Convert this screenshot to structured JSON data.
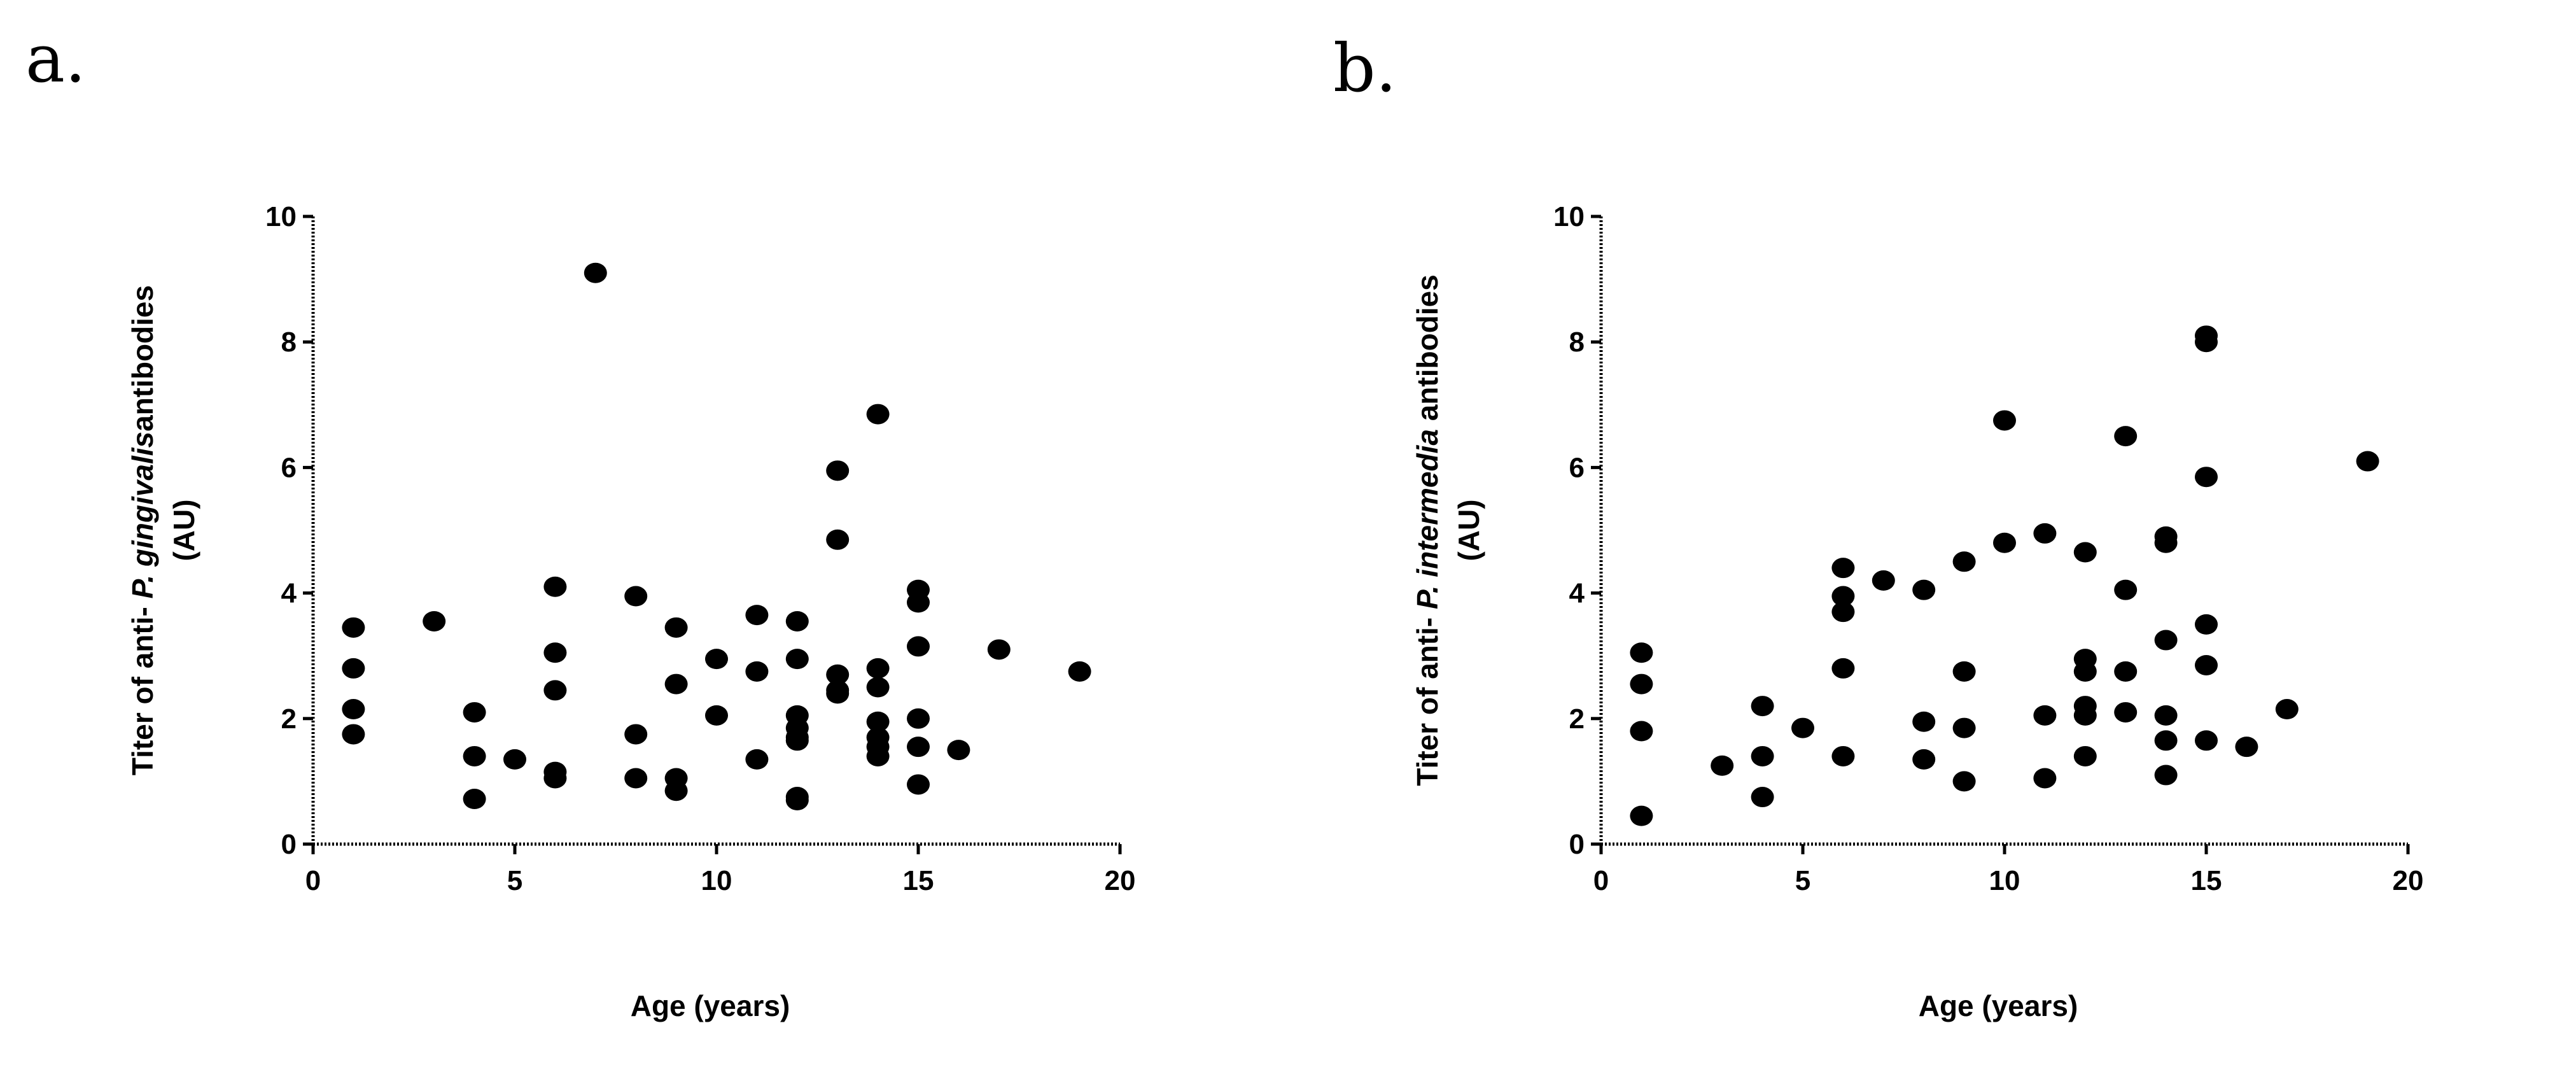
{
  "panels": {
    "a": {
      "letter": "a."
    },
    "b": {
      "letter": "b."
    }
  },
  "chart_data": [
    {
      "type": "scatter",
      "title": "",
      "xlabel": "Age (years)",
      "ylabel_parts": [
        "Titer of anti- ",
        "P. gingivalis",
        "antibodies"
      ],
      "ylabel_line2": "(AU)",
      "xlim": [
        0,
        20
      ],
      "ylim": [
        0,
        10
      ],
      "xticks": [
        "0",
        "5",
        "10",
        "15",
        "20"
      ],
      "yticks": [
        "0",
        "2",
        "4",
        "6",
        "8",
        "10"
      ],
      "grid": false,
      "marker_color": "#000000",
      "x": [
        1,
        1,
        1,
        1,
        3,
        4,
        4,
        4,
        5,
        6,
        6,
        6,
        6,
        6,
        7,
        8,
        8,
        8,
        9,
        9,
        9,
        9,
        10,
        10,
        11,
        11,
        11,
        12,
        12,
        12,
        12,
        12,
        12,
        12,
        12,
        13,
        13,
        13,
        13,
        13,
        14,
        14,
        14,
        14,
        14,
        14,
        14,
        15,
        15,
        15,
        15,
        15,
        15,
        16,
        17,
        19
      ],
      "y": [
        3.45,
        2.8,
        2.15,
        1.75,
        3.55,
        2.1,
        1.4,
        0.72,
        1.35,
        4.1,
        3.05,
        2.45,
        1.15,
        1.05,
        9.1,
        3.95,
        1.75,
        1.05,
        3.45,
        2.55,
        1.05,
        0.85,
        2.95,
        2.05,
        3.65,
        2.75,
        1.35,
        3.55,
        2.95,
        2.05,
        1.85,
        1.65,
        0.75,
        0.7,
        1.7,
        5.95,
        4.85,
        2.7,
        2.45,
        2.4,
        6.85,
        2.8,
        2.5,
        1.95,
        1.7,
        1.4,
        1.55,
        4.05,
        3.85,
        3.15,
        2.0,
        1.55,
        0.95,
        1.5,
        3.1,
        2.75
      ]
    },
    {
      "type": "scatter",
      "title": "",
      "xlabel": "Age (years)",
      "ylabel_parts": [
        "Titer of anti- ",
        "P. intermedia",
        " antibodies"
      ],
      "ylabel_line2": "(AU)",
      "xlim": [
        0,
        20
      ],
      "ylim": [
        0,
        10
      ],
      "xticks": [
        "0",
        "5",
        "10",
        "15",
        "20"
      ],
      "yticks": [
        "0",
        "2",
        "4",
        "6",
        "8",
        "10"
      ],
      "grid": false,
      "marker_color": "#000000",
      "x": [
        1,
        1,
        1,
        1,
        3,
        4,
        4,
        4,
        5,
        6,
        6,
        6,
        6,
        6,
        7,
        8,
        8,
        8,
        9,
        9,
        9,
        9,
        10,
        10,
        11,
        11,
        11,
        12,
        12,
        12,
        12,
        12,
        12,
        13,
        13,
        13,
        13,
        14,
        14,
        14,
        14,
        14,
        14,
        15,
        15,
        15,
        15,
        15,
        15,
        16,
        17,
        19
      ],
      "y": [
        3.05,
        2.55,
        1.8,
        0.45,
        1.25,
        2.2,
        1.4,
        0.75,
        1.85,
        4.4,
        3.95,
        3.7,
        2.8,
        1.4,
        4.2,
        4.05,
        1.95,
        1.35,
        4.5,
        2.75,
        1.85,
        1.0,
        6.75,
        4.8,
        4.95,
        2.05,
        1.05,
        4.65,
        2.95,
        2.75,
        2.2,
        2.05,
        1.4,
        6.5,
        4.05,
        2.75,
        2.1,
        4.9,
        4.8,
        3.25,
        2.05,
        1.65,
        1.1,
        8.1,
        8.0,
        5.85,
        3.5,
        2.85,
        1.65,
        1.55,
        2.15,
        6.1
      ]
    }
  ]
}
